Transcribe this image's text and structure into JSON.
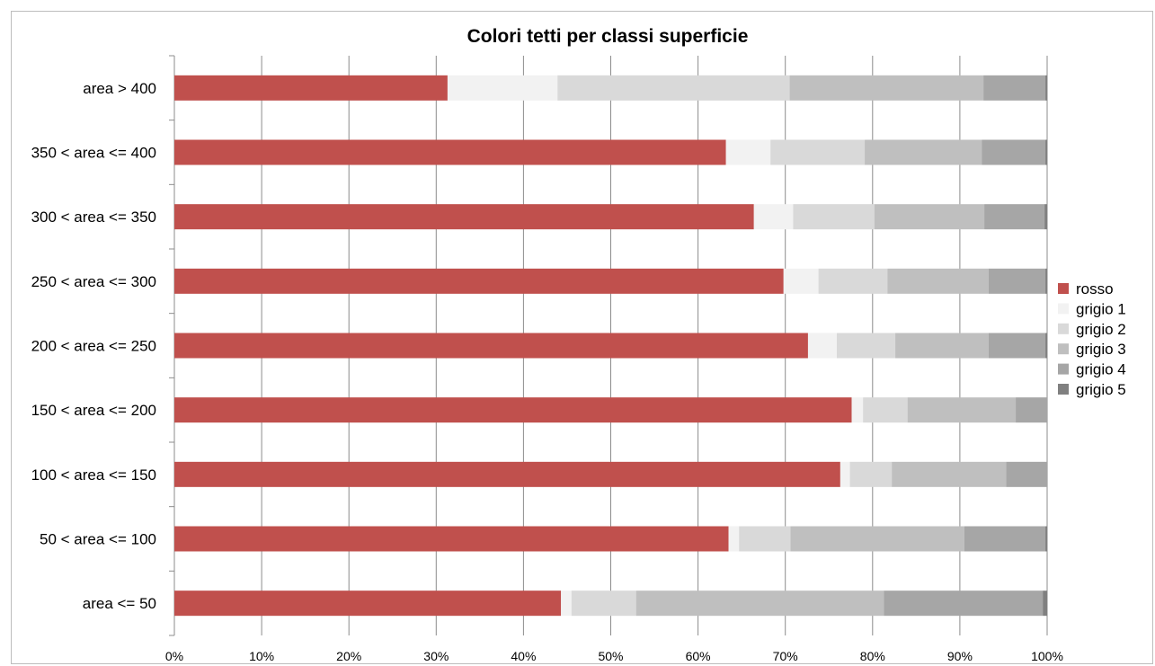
{
  "chart_data": {
    "type": "bar",
    "orientation": "horizontal",
    "stacked": "percent",
    "title": "Colori tetti per classi superficie",
    "categories": [
      "area > 400",
      "350 < area <= 400",
      "300 < area <= 350",
      "250 < area <= 300",
      "200 < area <= 250",
      "150 < area <= 200",
      "100 < area <= 150",
      "50 < area <= 100",
      "area <= 50"
    ],
    "x_ticks": [
      "0%",
      "10%",
      "20%",
      "30%",
      "40%",
      "50%",
      "60%",
      "70%",
      "80%",
      "90%",
      "100%"
    ],
    "xlim": [
      0,
      100
    ],
    "grid": true,
    "legend_position": "right",
    "series": [
      {
        "name": "rosso",
        "color": "#c0504d",
        "values": [
          31.3,
          63.2,
          66.4,
          69.8,
          72.6,
          77.6,
          76.3,
          63.5,
          44.3
        ]
      },
      {
        "name": "grigio 1",
        "color": "#f2f2f2",
        "values": [
          12.6,
          5.1,
          4.5,
          4.0,
          3.3,
          1.3,
          1.1,
          1.2,
          1.2
        ]
      },
      {
        "name": "grigio 2",
        "color": "#d9d9d9",
        "values": [
          26.6,
          10.8,
          9.3,
          7.9,
          6.7,
          5.1,
          4.8,
          5.9,
          7.4
        ]
      },
      {
        "name": "grigio 3",
        "color": "#bfbfbf",
        "values": [
          22.2,
          13.4,
          12.6,
          11.6,
          10.7,
          12.4,
          13.1,
          19.9,
          28.4
        ]
      },
      {
        "name": "grigio 4",
        "color": "#a6a6a6",
        "values": [
          7.1,
          7.3,
          6.9,
          6.5,
          6.5,
          3.6,
          4.7,
          9.3,
          18.2
        ]
      },
      {
        "name": "grigio 5",
        "color": "#808080",
        "values": [
          0.2,
          0.2,
          0.3,
          0.2,
          0.2,
          0.0,
          0.0,
          0.2,
          0.5
        ]
      }
    ]
  }
}
